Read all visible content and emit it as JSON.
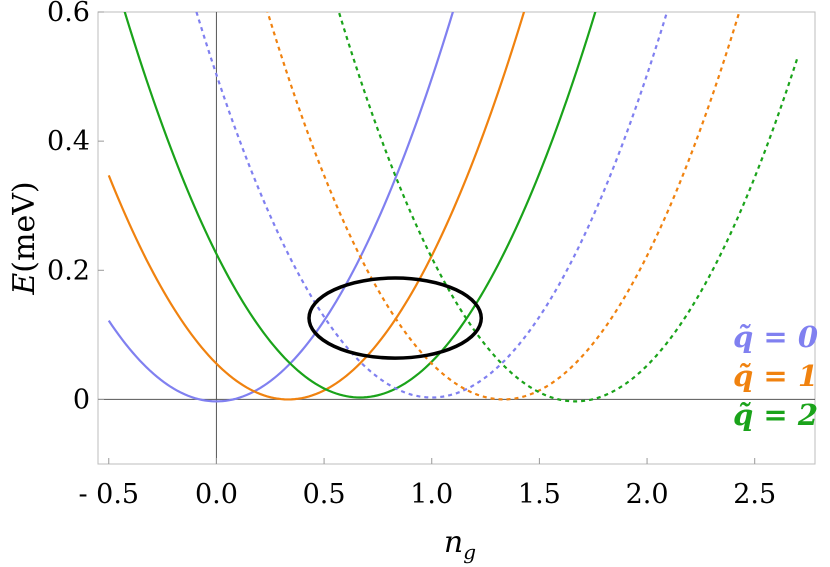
{
  "chart_data": {
    "type": "line",
    "xlabel": "n_g",
    "ylabel": "E(meV)",
    "xlim": [
      -0.55,
      2.78
    ],
    "ylim": [
      -0.1,
      0.6
    ],
    "x_ticks": [
      -0.5,
      0.0,
      0.5,
      1.0,
      1.5,
      2.0,
      2.5
    ],
    "x_tick_labels": [
      "- 0.5",
      "0.0",
      "0.5",
      "1.0",
      "1.5",
      "2.0",
      "2.5"
    ],
    "y_ticks": [
      0,
      0.2,
      0.4,
      0.6
    ],
    "y_tick_labels": [
      "0",
      "0.2",
      "0.4",
      "0.6"
    ],
    "curve_model": "E = a*(n_g - center)^2 + offset",
    "curvature_a": 0.5,
    "series": [
      {
        "name": "q̃ = 0",
        "color": "#8080f0",
        "style": "solid",
        "center": 0.0,
        "offset": -0.003
      },
      {
        "name": "q̃ = 1",
        "color": "#f0820f",
        "style": "solid",
        "center": 0.333,
        "offset": 0.0
      },
      {
        "name": "q̃ = 2",
        "color": "#1aa31a",
        "style": "solid",
        "center": 0.667,
        "offset": 0.003
      },
      {
        "name": "q̃ = 0",
        "color": "#8080f0",
        "style": "dotted",
        "center": 1.0,
        "offset": 0.003
      },
      {
        "name": "q̃ = 1",
        "color": "#f0820f",
        "style": "dotted",
        "center": 1.333,
        "offset": 0.0
      },
      {
        "name": "q̃ = 2",
        "color": "#1aa31a",
        "style": "dotted",
        "center": 1.667,
        "offset": -0.003
      }
    ],
    "x_range_data": [
      -0.5,
      2.7
    ],
    "annotation_ellipse": {
      "center_x": 0.83,
      "center_y": 0.126,
      "radius_x": 0.4,
      "radius_y": 0.062
    },
    "legend": {
      "placement": "bottom-right",
      "entries": [
        {
          "label": "q̃ = 0",
          "color": "#8080f0"
        },
        {
          "label": "q̃ = 1",
          "color": "#f0820f"
        },
        {
          "label": "q̃ = 2",
          "color": "#1aa31a"
        }
      ]
    },
    "grid": false
  }
}
